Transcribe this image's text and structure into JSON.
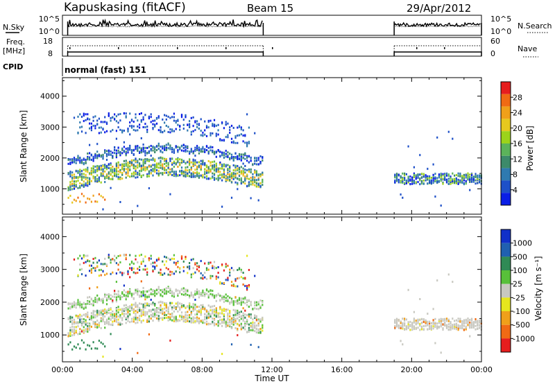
{
  "header": {
    "station": "Kapuskasing (fitACF)",
    "beam": "Beam 15",
    "date": "29/Apr/2012"
  },
  "param_panels": {
    "nsky_label": "N.Sky",
    "nsky_ticks": [
      "10^5",
      "10^0"
    ],
    "nsearch_label": "N.Search",
    "nsearch_ticks": [
      "10^5",
      "10^0"
    ],
    "freq_label": "Freq.",
    "freq_unit": "[MHz]",
    "freq_ticks": [
      "18",
      "8"
    ],
    "nave_label": "Nave",
    "nave_ticks": [
      "60",
      "0"
    ],
    "cpid_label": "CPID",
    "cpid_text": "normal (fast) 151"
  },
  "colors": {
    "power": [
      "#0a1ee6",
      "#1e50c8",
      "#2f7ab0",
      "#3c8a6a",
      "#5bb35a",
      "#9cd31a",
      "#e6c81e",
      "#f0a01a",
      "#f06a14",
      "#e61e1e"
    ],
    "velocity": [
      "#1030c8",
      "#2060b0",
      "#2f8a55",
      "#58c03a",
      "#c8c8c0",
      "#e6e61e",
      "#f0a01a",
      "#f06a14",
      "#e61e1e"
    ]
  },
  "chart_data": [
    {
      "type": "heatmap",
      "quantity": "power",
      "ylabel": "Slant Range [km]",
      "yticks": [
        1000,
        2000,
        3000,
        4000
      ],
      "ylim": [
        180,
        4600
      ],
      "xlim": [
        0,
        24
      ],
      "xticks": [
        "00:00",
        "04:00",
        "08:00",
        "12:00",
        "16:00",
        "20:00",
        "00:00"
      ],
      "colorbar_label": "Power [dB]",
      "colorbar_ticks": [
        "4",
        "8",
        "12",
        "16",
        "20",
        "24",
        "28"
      ],
      "data_segments": [
        [
          0.3,
          11.5
        ],
        [
          19.0,
          24.0
        ]
      ],
      "echo_bands": [
        {
          "t": [
            0.3,
            11.5
          ],
          "range_km": [
            1000,
            1600
          ],
          "power_db": "8-24"
        },
        {
          "t": [
            0.3,
            11.5
          ],
          "range_km": [
            1700,
            2200
          ],
          "power_db": "4-16"
        },
        {
          "t": [
            1.0,
            10.5
          ],
          "range_km": [
            2800,
            3400
          ],
          "power_db": "4-8"
        },
        {
          "t": [
            19.0,
            24.0
          ],
          "range_km": [
            1150,
            1500
          ],
          "power_db": "8-20"
        }
      ]
    },
    {
      "type": "heatmap",
      "quantity": "velocity",
      "ylabel": "Slant Range [km]",
      "yticks": [
        1000,
        2000,
        3000,
        4000
      ],
      "ylim": [
        180,
        4600
      ],
      "xlim": [
        0,
        24
      ],
      "xticks": [
        "00:00",
        "04:00",
        "08:00",
        "12:00",
        "16:00",
        "20:00",
        "00:00"
      ],
      "xlabel": "Time UT",
      "colorbar_label": "Velocity [m s⁻¹]",
      "colorbar_ticks": [
        "1000",
        "500",
        "100",
        "25",
        "-25",
        "-100",
        "-500",
        "-1000"
      ],
      "data_segments": [
        [
          0.3,
          11.5
        ],
        [
          19.0,
          24.0
        ]
      ]
    }
  ]
}
